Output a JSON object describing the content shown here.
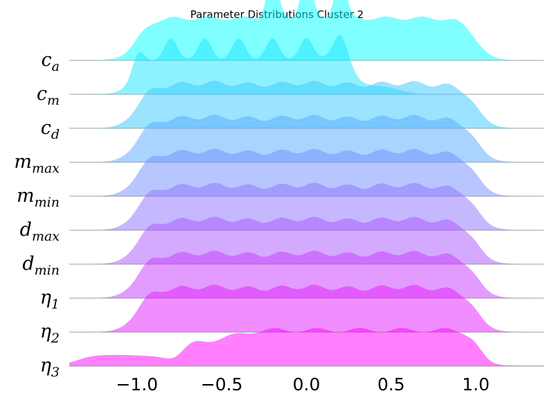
{
  "chart_data": {
    "type": "ridgeline",
    "title": "Parameter Distributions Cluster 2",
    "xlabel": "",
    "ylabel": "",
    "xlim": [
      -1.4,
      1.4
    ],
    "x_ticks": [
      -1.0,
      -0.5,
      0.0,
      0.5,
      1.0
    ],
    "x_tick_labels": [
      "−1.0",
      "−0.5",
      "0.0",
      "0.5",
      "1.0"
    ],
    "colormap": "cool",
    "series": [
      {
        "name": "c_a",
        "label_main": "c",
        "label_sub": "a",
        "color": "#00ffff",
        "shape": "three_peaks",
        "peaks": [
          -0.2,
          0.0,
          0.2
        ],
        "support": [
          -1.0,
          1.0
        ]
      },
      {
        "name": "c_m",
        "label_main": "c",
        "label_sub": "m",
        "color": "#1ce3ff",
        "shape": "seven_peaks",
        "peaks": [
          -1.0,
          -0.8,
          -0.6,
          -0.4,
          -0.2,
          0.0,
          0.2
        ],
        "support": [
          -1.0,
          0.2
        ]
      },
      {
        "name": "c_d",
        "label_main": "c",
        "label_sub": "d",
        "color": "#38c7ff",
        "shape": "uniform",
        "support": [
          -1.0,
          1.0
        ]
      },
      {
        "name": "m_max",
        "label_main": "m",
        "label_sub": "max",
        "color": "#55aaff",
        "shape": "uniform",
        "support": [
          -1.0,
          1.0
        ]
      },
      {
        "name": "m_min",
        "label_main": "m",
        "label_sub": "min",
        "color": "#718eff",
        "shape": "uniform",
        "support": [
          -1.0,
          1.0
        ]
      },
      {
        "name": "d_max",
        "label_main": "d",
        "label_sub": "max",
        "color": "#8e71ff",
        "shape": "uniform",
        "support": [
          -1.0,
          1.0
        ]
      },
      {
        "name": "d_min",
        "label_main": "d",
        "label_sub": "min",
        "color": "#aa55ff",
        "shape": "uniform",
        "support": [
          -1.0,
          1.0
        ]
      },
      {
        "name": "eta_1",
        "label_main": "η",
        "label_sub": "1",
        "color": "#c738ff",
        "shape": "uniform",
        "support": [
          -1.0,
          1.0
        ]
      },
      {
        "name": "eta_2",
        "label_main": "η",
        "label_sub": "2",
        "color": "#e31cff",
        "shape": "uniform",
        "support": [
          -1.0,
          1.0
        ]
      },
      {
        "name": "eta_3",
        "label_main": "η",
        "label_sub": "3",
        "color": "#ff00ff",
        "shape": "ramp_up",
        "support": [
          -1.3,
          1.0
        ]
      }
    ]
  }
}
